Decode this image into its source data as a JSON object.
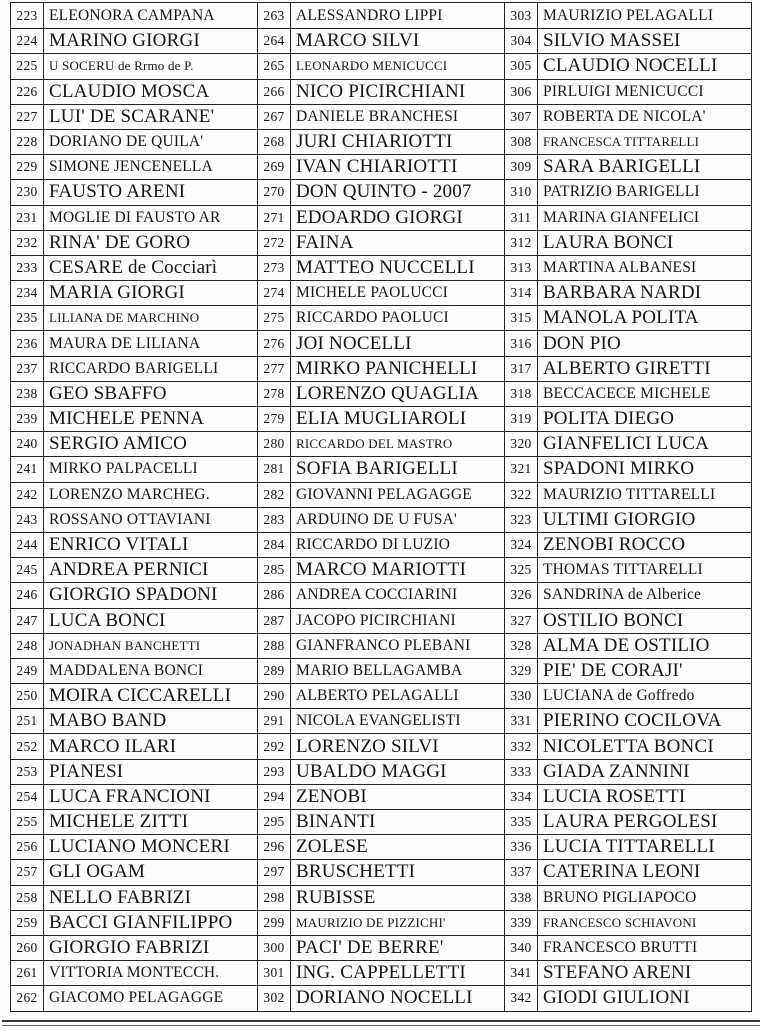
{
  "page": {
    "background": "#fdfdfb",
    "border_color": "#242424",
    "text_color": "#151515",
    "number_range": "223-342"
  },
  "table": {
    "columns": [
      {
        "rows": [
          {
            "num": "223",
            "name": "ELEONORA CAMPANA",
            "size": "m"
          },
          {
            "num": "224",
            "name": "MARINO GIORGI",
            "size": "l"
          },
          {
            "num": "225",
            "name": "U SOCERU de Rrmo de P.",
            "size": "s"
          },
          {
            "num": "226",
            "name": "CLAUDIO MOSCA",
            "size": "l"
          },
          {
            "num": "227",
            "name": "LUI' DE SCARANE'",
            "size": "l"
          },
          {
            "num": "228",
            "name": "DORIANO DE QUILA'",
            "size": "m"
          },
          {
            "num": "229",
            "name": "SIMONE JENCENELLA",
            "size": "m"
          },
          {
            "num": "230",
            "name": "FAUSTO ARENI",
            "size": "l"
          },
          {
            "num": "231",
            "name": "MOGLIE DI FAUSTO AR",
            "size": "m"
          },
          {
            "num": "232",
            "name": "RINA' DE GORO",
            "size": "l"
          },
          {
            "num": "233",
            "name": "CESARE de Cocciarì",
            "size": "l"
          },
          {
            "num": "234",
            "name": "MARIA GIORGI",
            "size": "l"
          },
          {
            "num": "235",
            "name": "LILIANA DE MARCHINO",
            "size": "s"
          },
          {
            "num": "236",
            "name": "MAURA DE LILIANA",
            "size": "m"
          },
          {
            "num": "237",
            "name": "RICCARDO BARIGELLI",
            "size": "m"
          },
          {
            "num": "238",
            "name": "GEO SBAFFO",
            "size": "l"
          },
          {
            "num": "239",
            "name": "MICHELE PENNA",
            "size": "l"
          },
          {
            "num": "240",
            "name": "SERGIO AMICO",
            "size": "l"
          },
          {
            "num": "241",
            "name": "MIRKO PALPACELLI",
            "size": "m"
          },
          {
            "num": "242",
            "name": "LORENZO MARCHEG.",
            "size": "m"
          },
          {
            "num": "243",
            "name": "ROSSANO OTTAVIANI",
            "size": "m"
          },
          {
            "num": "244",
            "name": "ENRICO VITALI",
            "size": "l"
          },
          {
            "num": "245",
            "name": "ANDREA PERNICI",
            "size": "l"
          },
          {
            "num": "246",
            "name": "GIORGIO SPADONI",
            "size": "l"
          },
          {
            "num": "247",
            "name": "LUCA BONCI",
            "size": "l"
          },
          {
            "num": "248",
            "name": "JONADHAN BANCHETTI",
            "size": "s"
          },
          {
            "num": "249",
            "name": "MADDALENA BONCI",
            "size": "m"
          },
          {
            "num": "250",
            "name": "MOIRA CICCARELLI",
            "size": "l"
          },
          {
            "num": "251",
            "name": "MABO BAND",
            "size": "l"
          },
          {
            "num": "252",
            "name": "MARCO ILARI",
            "size": "l"
          },
          {
            "num": "253",
            "name": "PIANESI",
            "size": "l"
          },
          {
            "num": "254",
            "name": "LUCA FRANCIONI",
            "size": "l"
          },
          {
            "num": "255",
            "name": "MICHELE ZITTI",
            "size": "l"
          },
          {
            "num": "256",
            "name": "LUCIANO MONCERI",
            "size": "l"
          },
          {
            "num": "257",
            "name": "GLI OGAM",
            "size": "l"
          },
          {
            "num": "258",
            "name": "NELLO FABRIZI",
            "size": "l"
          },
          {
            "num": "259",
            "name": "BACCI GIANFILIPPO",
            "size": "l"
          },
          {
            "num": "260",
            "name": "GIORGIO FABRIZI",
            "size": "l"
          },
          {
            "num": "261",
            "name": "VITTORIA MONTECCH.",
            "size": "m"
          },
          {
            "num": "262",
            "name": "GIACOMO PELAGAGGE",
            "size": "m"
          }
        ]
      },
      {
        "rows": [
          {
            "num": "263",
            "name": "ALESSANDRO LIPPI",
            "size": "m"
          },
          {
            "num": "264",
            "name": "MARCO SILVI",
            "size": "l"
          },
          {
            "num": "265",
            "name": "LEONARDO MENICUCCI",
            "size": "s"
          },
          {
            "num": "266",
            "name": "NICO PICIRCHIANI",
            "size": "l"
          },
          {
            "num": "267",
            "name": "DANIELE BRANCHESI",
            "size": "m"
          },
          {
            "num": "268",
            "name": "JURI CHIARIOTTI",
            "size": "l"
          },
          {
            "num": "269",
            "name": "IVAN CHIARIOTTI",
            "size": "l"
          },
          {
            "num": "270",
            "name": "DON QUINTO - 2007",
            "size": "l"
          },
          {
            "num": "271",
            "name": "EDOARDO GIORGI",
            "size": "l"
          },
          {
            "num": "272",
            "name": "FAINA",
            "size": "l"
          },
          {
            "num": "273",
            "name": "MATTEO NUCCELLI",
            "size": "l"
          },
          {
            "num": "274",
            "name": "MICHELE PAOLUCCI",
            "size": "m"
          },
          {
            "num": "275",
            "name": "RICCARDO PAOLUCI",
            "size": "m"
          },
          {
            "num": "276",
            "name": "JOI NOCELLI",
            "size": "l"
          },
          {
            "num": "277",
            "name": "MIRKO PANICHELLI",
            "size": "l"
          },
          {
            "num": "278",
            "name": "LORENZO QUAGLIA",
            "size": "l"
          },
          {
            "num": "279",
            "name": "ELIA MUGLIAROLI",
            "size": "l"
          },
          {
            "num": "280",
            "name": "RICCARDO DEL MASTRO",
            "size": "s"
          },
          {
            "num": "281",
            "name": "SOFIA BARIGELLI",
            "size": "l"
          },
          {
            "num": "282",
            "name": "GIOVANNI PELAGAGGE",
            "size": "m"
          },
          {
            "num": "283",
            "name": "ARDUINO DE U FUSA'",
            "size": "m"
          },
          {
            "num": "284",
            "name": "RICCARDO DI LUZIO",
            "size": "m"
          },
          {
            "num": "285",
            "name": "MARCO MARIOTTI",
            "size": "l"
          },
          {
            "num": "286",
            "name": "ANDREA COCCIARINI",
            "size": "m"
          },
          {
            "num": "287",
            "name": "JACOPO PICIRCHIANI",
            "size": "m"
          },
          {
            "num": "288",
            "name": "GIANFRANCO PLEBANI",
            "size": "m"
          },
          {
            "num": "289",
            "name": "MARIO BELLAGAMBA",
            "size": "m"
          },
          {
            "num": "290",
            "name": "ALBERTO PELAGALLI",
            "size": "m"
          },
          {
            "num": "291",
            "name": "NICOLA EVANGELISTI",
            "size": "m"
          },
          {
            "num": "292",
            "name": "LORENZO SILVI",
            "size": "l"
          },
          {
            "num": "293",
            "name": "UBALDO MAGGI",
            "size": "l"
          },
          {
            "num": "294",
            "name": "ZENOBI",
            "size": "l"
          },
          {
            "num": "295",
            "name": "BINANTI",
            "size": "l"
          },
          {
            "num": "296",
            "name": "ZOLESE",
            "size": "l"
          },
          {
            "num": "297",
            "name": "BRUSCHETTI",
            "size": "l"
          },
          {
            "num": "298",
            "name": "RUBISSE",
            "size": "l"
          },
          {
            "num": "299",
            "name": "MAURIZIO DE PIZZICHI'",
            "size": "s"
          },
          {
            "num": "300",
            "name": "PACI' DE BERRE'",
            "size": "l"
          },
          {
            "num": "301",
            "name": "ING. CAPPELLETTI",
            "size": "l"
          },
          {
            "num": "302",
            "name": "DORIANO NOCELLI",
            "size": "l"
          }
        ]
      },
      {
        "rows": [
          {
            "num": "303",
            "name": "MAURIZIO PELAGALLI",
            "size": "m"
          },
          {
            "num": "304",
            "name": "SILVIO MASSEI",
            "size": "l"
          },
          {
            "num": "305",
            "name": "CLAUDIO NOCELLI",
            "size": "l"
          },
          {
            "num": "306",
            "name": "PIRLUIGI MENICUCCI",
            "size": "m"
          },
          {
            "num": "307",
            "name": "ROBERTA DE NICOLA'",
            "size": "m"
          },
          {
            "num": "308",
            "name": "FRANCESCA TITTARELLI",
            "size": "s"
          },
          {
            "num": "309",
            "name": "SARA BARIGELLI",
            "size": "l"
          },
          {
            "num": "310",
            "name": "PATRIZIO BARIGELLI",
            "size": "m"
          },
          {
            "num": "311",
            "name": "MARINA GIANFELICI",
            "size": "m"
          },
          {
            "num": "312",
            "name": "LAURA BONCI",
            "size": "l"
          },
          {
            "num": "313",
            "name": "MARTINA ALBANESI",
            "size": "m"
          },
          {
            "num": "314",
            "name": "BARBARA NARDI",
            "size": "l"
          },
          {
            "num": "315",
            "name": "MANOLA POLITA",
            "size": "l"
          },
          {
            "num": "316",
            "name": "DON PIO",
            "size": "l"
          },
          {
            "num": "317",
            "name": "ALBERTO GIRETTI",
            "size": "l"
          },
          {
            "num": "318",
            "name": "BECCACECE MICHELE",
            "size": "m"
          },
          {
            "num": "319",
            "name": "POLITA DIEGO",
            "size": "l"
          },
          {
            "num": "320",
            "name": "GIANFELICI LUCA",
            "size": "l"
          },
          {
            "num": "321",
            "name": "SPADONI MIRKO",
            "size": "l"
          },
          {
            "num": "322",
            "name": "MAURIZIO TITTARELLI",
            "size": "m"
          },
          {
            "num": "323",
            "name": "ULTIMI GIORGIO",
            "size": "l"
          },
          {
            "num": "324",
            "name": "ZENOBI ROCCO",
            "size": "l"
          },
          {
            "num": "325",
            "name": "THOMAS TITTARELLI",
            "size": "m"
          },
          {
            "num": "326",
            "name": "SANDRINA de Alberice",
            "size": "m"
          },
          {
            "num": "327",
            "name": "OSTILIO  BONCI",
            "size": "l"
          },
          {
            "num": "328",
            "name": "ALMA DE OSTILIO",
            "size": "l"
          },
          {
            "num": "329",
            "name": "PIE' DE CORAJI'",
            "size": "l"
          },
          {
            "num": "330",
            "name": "LUCIANA de Goffredo",
            "size": "m"
          },
          {
            "num": "331",
            "name": "PIERINO COCILOVA",
            "size": "l"
          },
          {
            "num": "332",
            "name": "NICOLETTA BONCI",
            "size": "l"
          },
          {
            "num": "333",
            "name": "GIADA ZANNINI",
            "size": "l"
          },
          {
            "num": "334",
            "name": "LUCIA ROSETTI",
            "size": "l"
          },
          {
            "num": "335",
            "name": "LAURA PERGOLESI",
            "size": "l"
          },
          {
            "num": "336",
            "name": "LUCIA TITTARELLI",
            "size": "l"
          },
          {
            "num": "337",
            "name": "CATERINA LEONI",
            "size": "l"
          },
          {
            "num": "338",
            "name": "BRUNO PIGLIAPOCO",
            "size": "m"
          },
          {
            "num": "339",
            "name": "FRANCESCO SCHIAVONI",
            "size": "s"
          },
          {
            "num": "340",
            "name": "FRANCESCO BRUTTI",
            "size": "m"
          },
          {
            "num": "341",
            "name": "STEFANO ARENI",
            "size": "l"
          },
          {
            "num": "342",
            "name": "GIODI GIULIONI",
            "size": "l"
          }
        ]
      }
    ]
  }
}
